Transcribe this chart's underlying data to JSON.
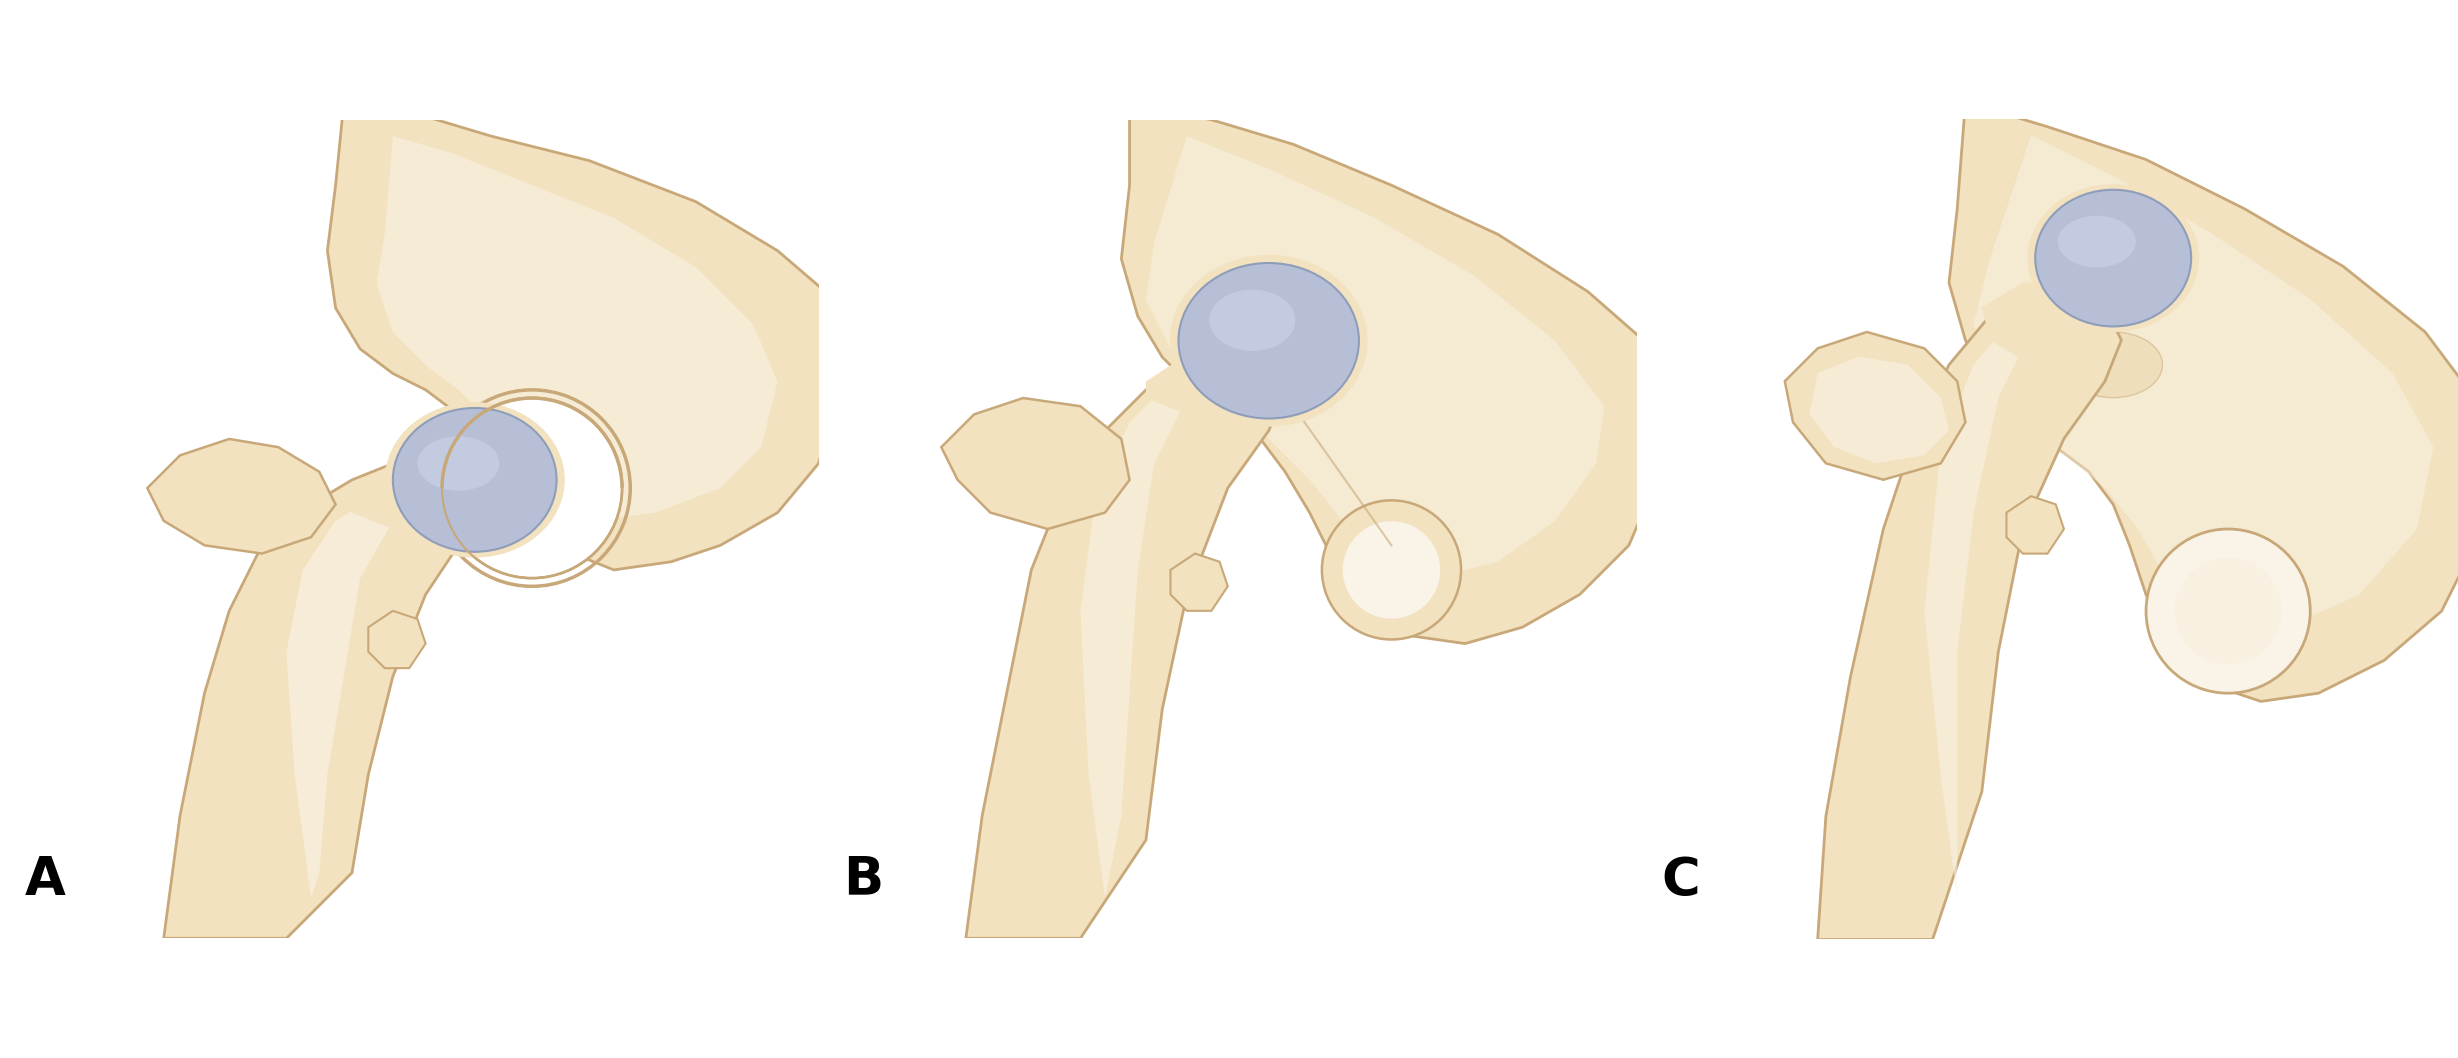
{
  "figure_width": 24.58,
  "figure_height": 10.58,
  "dpi": 100,
  "background_color": "#ffffff",
  "label_A": "A",
  "label_B": "B",
  "label_C": "C",
  "label_fontsize": 38,
  "label_fontweight": "bold",
  "label_color": "#000000",
  "bone_fill": "#f2e2c0",
  "bone_mid": "#e8d4a8",
  "bone_dark": "#d4bc8a",
  "bone_edge": "#c8a878",
  "bone_highlight": "#faf4e8",
  "cartilage_fill": "#b0bcd8",
  "cartilage_light": "#d0d8ee",
  "cartilage_edge": "#8898b8",
  "white": "#ffffff",
  "shadow": "#e0cca8"
}
